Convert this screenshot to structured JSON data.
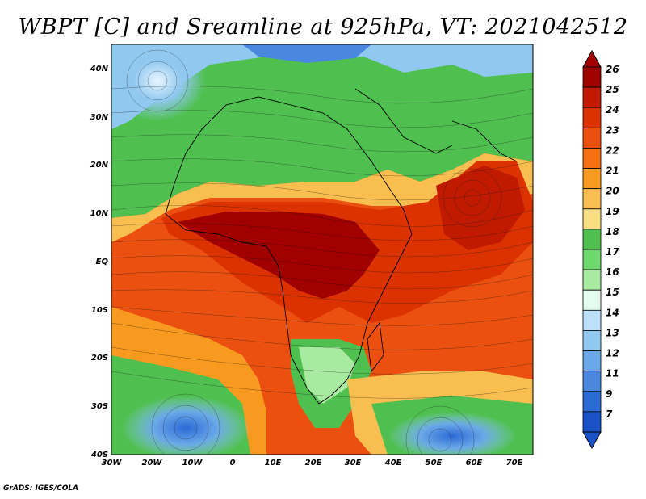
{
  "title": "WBPT [C] and Sreamline at 925hPa, VT: 2021042512",
  "credit": "GrADS: IGES/COLA",
  "map": {
    "lat_labels": [
      "40N",
      "30N",
      "20N",
      "10N",
      "EQ",
      "10S",
      "20S",
      "30S",
      "40S"
    ],
    "lon_labels": [
      "30W",
      "20W",
      "10W",
      "0",
      "10E",
      "20E",
      "30E",
      "40E",
      "50E",
      "60E",
      "70E"
    ],
    "lon_range": [
      -30,
      75
    ],
    "lat_range": [
      -40,
      45
    ]
  },
  "colorbar": {
    "levels": [
      "26",
      "25",
      "24",
      "23",
      "22",
      "21",
      "20",
      "19",
      "18",
      "17",
      "16",
      "15",
      "14",
      "13",
      "12",
      "11",
      "9",
      "7"
    ],
    "colors": [
      "#a00000",
      "#c01a00",
      "#dc3200",
      "#ec5010",
      "#f57010",
      "#f89a20",
      "#f8be50",
      "#f8de80",
      "#4fc04f",
      "#6ed86e",
      "#a8eaa0",
      "#e4fbf0",
      "#bce0f8",
      "#90c8f0",
      "#6aa8e8",
      "#4a88e0",
      "#2c6ad6",
      "#1a50c8"
    ],
    "top_arrow_color": "#a00000",
    "bottom_arrow_color": "#1a50c8"
  }
}
